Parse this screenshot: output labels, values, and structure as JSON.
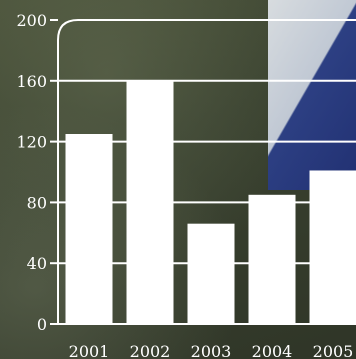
{
  "chart_data": {
    "type": "bar",
    "categories": [
      "2001",
      "2002",
      "2003",
      "2004",
      "2005"
    ],
    "values": [
      125,
      160,
      66,
      85,
      101
    ],
    "ylim": [
      0,
      200
    ],
    "yticks": [
      "0",
      "40",
      "80",
      "120",
      "160",
      "200"
    ],
    "title": "",
    "xlabel": "",
    "ylabel": "",
    "grid": true,
    "colors": {
      "bar": "#ffffff",
      "axis": "#ffffff",
      "grid": "#ffffff"
    }
  }
}
